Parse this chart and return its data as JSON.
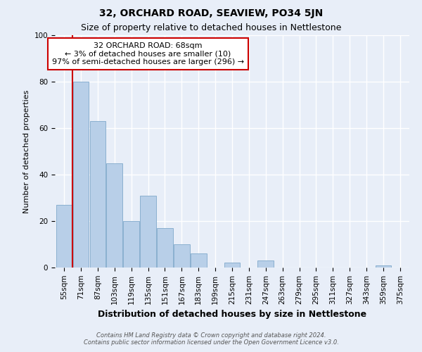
{
  "title": "32, ORCHARD ROAD, SEAVIEW, PO34 5JN",
  "subtitle": "Size of property relative to detached houses in Nettlestone",
  "xlabel": "Distribution of detached houses by size in Nettlestone",
  "ylabel": "Number of detached properties",
  "categories": [
    "55sqm",
    "71sqm",
    "87sqm",
    "103sqm",
    "119sqm",
    "135sqm",
    "151sqm",
    "167sqm",
    "183sqm",
    "199sqm",
    "215sqm",
    "231sqm",
    "247sqm",
    "263sqm",
    "279sqm",
    "295sqm",
    "311sqm",
    "327sqm",
    "343sqm",
    "359sqm",
    "375sqm"
  ],
  "values": [
    27,
    80,
    63,
    45,
    20,
    31,
    17,
    10,
    6,
    0,
    2,
    0,
    3,
    0,
    0,
    0,
    0,
    0,
    0,
    1,
    0
  ],
  "bar_color": "#b8cfe8",
  "bar_edge_color": "#8ab0d0",
  "annotation_text_line1": "32 ORCHARD ROAD: 68sqm",
  "annotation_text_line2": "← 3% of detached houses are smaller (10)",
  "annotation_text_line3": "97% of semi-detached houses are larger (296) →",
  "annotation_box_facecolor": "white",
  "annotation_box_edgecolor": "#cc0000",
  "vline_color": "#cc0000",
  "ylim": [
    0,
    100
  ],
  "background_color": "#e8eef8",
  "grid_color": "white",
  "footer_line1": "Contains HM Land Registry data © Crown copyright and database right 2024.",
  "footer_line2": "Contains public sector information licensed under the Open Government Licence v3.0.",
  "title_fontsize": 10,
  "subtitle_fontsize": 9,
  "ylabel_fontsize": 8,
  "xlabel_fontsize": 9,
  "tick_fontsize": 7.5,
  "annotation_fontsize": 8
}
